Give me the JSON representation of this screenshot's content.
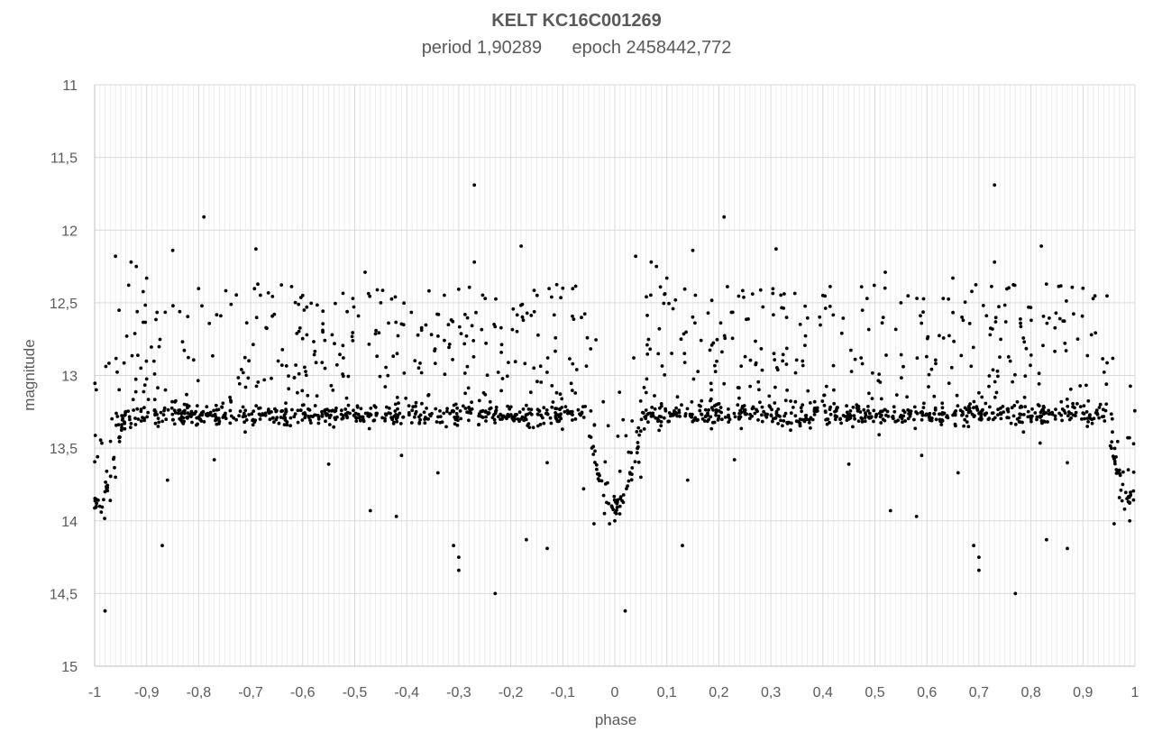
{
  "chart_data": {
    "type": "scatter",
    "title": "KELT KC16C001269",
    "subtitle": "period 1,90289      epoch 2458442,772",
    "xlabel": "phase",
    "ylabel": "magnitude",
    "xlim": [
      -1,
      1
    ],
    "ylim": [
      11,
      15
    ],
    "y_inverted": true,
    "grid": "vertical-minor",
    "legend": "none",
    "marker_color": "#000000",
    "x_ticks": [
      "-1",
      "-0,9",
      "-0,8",
      "-0,7",
      "-0,6",
      "-0,5",
      "-0,4",
      "-0,3",
      "-0,2",
      "-0,1",
      "0",
      "0,1",
      "0,2",
      "0,3",
      "0,4",
      "0,5",
      "0,6",
      "0,7",
      "0,8",
      "0,9",
      "1"
    ],
    "y_ticks": [
      "11",
      "11,5",
      "12",
      "12,5",
      "13",
      "13,5",
      "14",
      "14,5",
      "15"
    ],
    "base_magnitude": 13.27,
    "dip_center_phase": 0.0,
    "dip_depth": 0.62,
    "dip_half_width": 0.055,
    "points": [
      {
        "x": -0.98,
        "y": 14.62
      },
      {
        "x": 0.02,
        "y": 14.62
      },
      {
        "x": -0.23,
        "y": 14.5
      },
      {
        "x": 0.77,
        "y": 14.5
      },
      {
        "x": -0.3,
        "y": 14.34
      },
      {
        "x": 0.7,
        "y": 14.34
      },
      {
        "x": -0.31,
        "y": 14.17
      },
      {
        "x": 0.69,
        "y": 14.17
      },
      {
        "x": -0.3,
        "y": 14.25
      },
      {
        "x": 0.7,
        "y": 14.25
      },
      {
        "x": -0.87,
        "y": 14.17
      },
      {
        "x": 0.13,
        "y": 14.17
      },
      {
        "x": -0.17,
        "y": 14.13
      },
      {
        "x": 0.83,
        "y": 14.13
      },
      {
        "x": -0.13,
        "y": 14.19
      },
      {
        "x": 0.87,
        "y": 14.19
      },
      {
        "x": -0.42,
        "y": 13.97
      },
      {
        "x": 0.58,
        "y": 13.97
      },
      {
        "x": -0.47,
        "y": 13.93
      },
      {
        "x": 0.53,
        "y": 13.93
      },
      {
        "x": -0.27,
        "y": 11.69
      },
      {
        "x": 0.73,
        "y": 11.69
      },
      {
        "x": -0.79,
        "y": 11.91
      },
      {
        "x": 0.21,
        "y": 11.91
      },
      {
        "x": -0.85,
        "y": 12.14
      },
      {
        "x": 0.15,
        "y": 12.14
      },
      {
        "x": -0.69,
        "y": 12.13
      },
      {
        "x": 0.31,
        "y": 12.13
      },
      {
        "x": -0.18,
        "y": 12.11
      },
      {
        "x": 0.82,
        "y": 12.11
      },
      {
        "x": -0.96,
        "y": 12.18
      },
      {
        "x": 0.04,
        "y": 12.18
      },
      {
        "x": -0.27,
        "y": 12.22
      },
      {
        "x": 0.73,
        "y": 12.22
      },
      {
        "x": -0.93,
        "y": 12.22
      },
      {
        "x": 0.07,
        "y": 12.22
      },
      {
        "x": -0.92,
        "y": 12.25
      },
      {
        "x": 0.08,
        "y": 12.25
      },
      {
        "x": -0.48,
        "y": 12.29
      },
      {
        "x": 0.52,
        "y": 12.29
      },
      {
        "x": -0.9,
        "y": 12.33
      },
      {
        "x": 0.1,
        "y": 12.33
      },
      {
        "x": -0.96,
        "y": 13.7
      },
      {
        "x": -0.98,
        "y": 13.8
      },
      {
        "x": -0.99,
        "y": 13.9
      },
      {
        "x": -0.97,
        "y": 13.86
      },
      {
        "x": 0.97,
        "y": 13.84
      },
      {
        "x": 0.98,
        "y": 13.92
      },
      {
        "x": 0.99,
        "y": 14.0
      },
      {
        "x": 0.96,
        "y": 14.02
      },
      {
        "x": -0.04,
        "y": 14.02
      },
      {
        "x": -0.01,
        "y": 14.02
      },
      {
        "x": -0.0,
        "y": 14.0
      },
      {
        "x": 0.01,
        "y": 13.9
      },
      {
        "x": -0.06,
        "y": 13.78
      },
      {
        "x": 0.05,
        "y": 13.7
      },
      {
        "x": -0.02,
        "y": 13.95
      },
      {
        "x": -0.86,
        "y": 13.72
      },
      {
        "x": 0.14,
        "y": 13.72
      },
      {
        "x": -0.55,
        "y": 13.61
      },
      {
        "x": 0.45,
        "y": 13.61
      },
      {
        "x": -0.41,
        "y": 13.55
      },
      {
        "x": 0.59,
        "y": 13.55
      },
      {
        "x": -0.34,
        "y": 13.67
      },
      {
        "x": 0.66,
        "y": 13.67
      },
      {
        "x": -0.13,
        "y": 13.6
      },
      {
        "x": 0.87,
        "y": 13.6
      },
      {
        "x": -0.77,
        "y": 13.58
      },
      {
        "x": 0.23,
        "y": 13.58
      },
      {
        "x": -0.32,
        "y": 12.65
      },
      {
        "x": 0.65,
        "y": 12.33
      },
      {
        "x": -0.6,
        "y": 12.45
      },
      {
        "x": 0.4,
        "y": 12.45
      },
      {
        "x": -0.1,
        "y": 12.4
      },
      {
        "x": 0.9,
        "y": 12.4
      },
      {
        "x": -0.45,
        "y": 12.5
      },
      {
        "x": 0.55,
        "y": 12.5
      }
    ]
  }
}
